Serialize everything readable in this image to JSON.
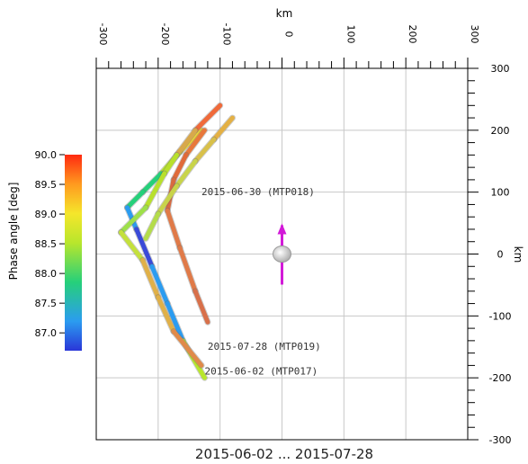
{
  "chart_data": {
    "type": "line",
    "xlabel": "km",
    "ylabel": "km",
    "xlim": [
      -300,
      300
    ],
    "ylim": [
      -300,
      300
    ],
    "x_ticks": [
      "-300",
      "-200",
      "-100",
      "0",
      "100",
      "200",
      "300"
    ],
    "y_ticks": [
      "300",
      "200",
      "100",
      "0",
      "-100",
      "-200",
      "-300"
    ],
    "grid": true,
    "footer": "2015-06-02 ... 2015-07-28",
    "colorbar": {
      "label": "Phase angle [deg]",
      "range": [
        86.7,
        90.0
      ],
      "ticks": [
        "90.0",
        "89.5",
        "89.0",
        "88.5",
        "88.0",
        "87.5",
        "87.0"
      ]
    },
    "series": [
      {
        "points": [
          [
            -130,
            200
          ],
          [
            -165,
            165
          ],
          [
            -195,
            130
          ],
          [
            -225,
            100
          ],
          [
            -250,
            75
          ],
          [
            -235,
            40
          ],
          [
            -210,
            -20
          ],
          [
            -185,
            -80
          ],
          [
            -160,
            -140
          ],
          [
            -125,
            -200
          ]
        ]
      },
      {
        "points": [
          [
            -125,
            200
          ],
          [
            -155,
            160
          ],
          [
            -175,
            120
          ],
          [
            -185,
            70
          ],
          [
            -165,
            10
          ],
          [
            -140,
            -60
          ],
          [
            -120,
            -110
          ]
        ]
      },
      {
        "points": [
          [
            -80,
            220
          ],
          [
            -110,
            185
          ],
          [
            -140,
            150
          ],
          [
            -170,
            110
          ],
          [
            -200,
            65
          ],
          [
            -220,
            25
          ]
        ]
      },
      {
        "points": [
          [
            -100,
            240
          ],
          [
            -140,
            200
          ],
          [
            -170,
            160
          ],
          [
            -190,
            130
          ],
          [
            -220,
            75
          ],
          [
            -260,
            35
          ],
          [
            -225,
            -10
          ],
          [
            -200,
            -70
          ],
          [
            -175,
            -125
          ],
          [
            -130,
            -180
          ]
        ]
      }
    ],
    "annotations": [
      {
        "text": "2015-06-30 (MTP018)",
        "x": -130,
        "y": 95
      },
      {
        "text": "2015-07-28 (MTP019)",
        "x": -120,
        "y": -155
      },
      {
        "text": "2015-06-02 (MTP017)",
        "x": -125,
        "y": -195
      }
    ],
    "comet_marker": {
      "x": 0,
      "y": 0
    }
  }
}
